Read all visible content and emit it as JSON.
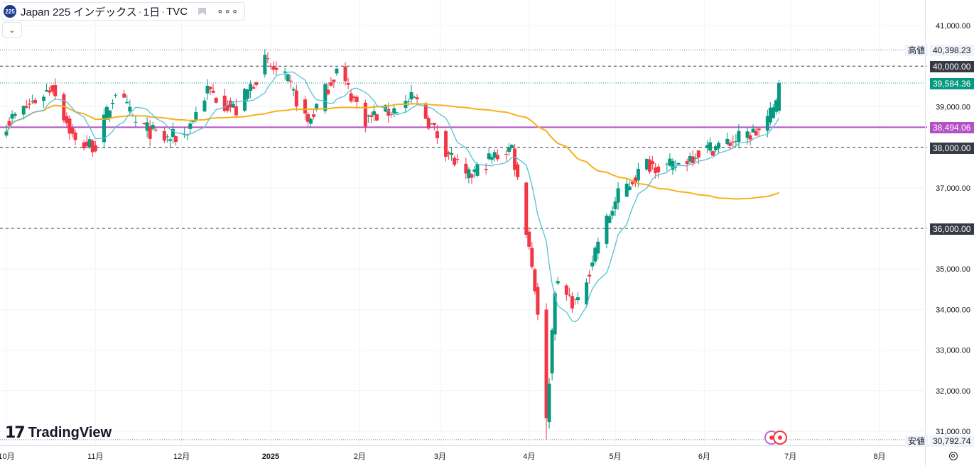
{
  "header": {
    "symbol_badge": "225",
    "symbol_name": "Japan 225 インデックス",
    "separator": "·",
    "interval": "1日",
    "source": "TVC",
    "flag_icon": "flag-icon",
    "more_icon": "more-icon",
    "more_glyph": "∘∘∘",
    "collapse_icon": "chevron-down-icon",
    "collapse_glyph": "⌄"
  },
  "logo": {
    "mark": "17",
    "text": "TradingView"
  },
  "price_labels": {
    "high_tag": "高値",
    "high_value": "40,398.23",
    "low_tag": "安値",
    "low_value": "30,792.74",
    "last_value": "39,584.36",
    "line_40000": "40,000.00",
    "line_38494": "38,494.06",
    "line_38000": "38,000.00",
    "line_36000": "36,000.00"
  },
  "colors": {
    "up": "#089981",
    "down": "#f23645",
    "ma_fast": "#56c1d6",
    "ma_slow": "#f5b21b",
    "hline_purple": "#b350c5",
    "dark_label": "#363a45",
    "grid": "#f0f3fa",
    "last_label": "#089981"
  },
  "chart_data": {
    "type": "candlestick",
    "title": "Japan 225 インデックス · 1日 · TVC",
    "ylim": [
      30700,
      41500
    ],
    "yticks": [
      "41,000.00",
      "40,000.00",
      "39,000.00",
      "38,000.00",
      "37,000.00",
      "36,000.00",
      "35,000.00",
      "34,000.00",
      "33,000.00",
      "32,000.00",
      "31,000.00"
    ],
    "ytick_values": [
      41000,
      40000,
      39000,
      38000,
      37000,
      36000,
      35000,
      34000,
      33000,
      32000,
      31000
    ],
    "xticks": [
      {
        "label": "10月",
        "date": "2024-10-01"
      },
      {
        "label": "11月",
        "date": "2024-11-01"
      },
      {
        "label": "12月",
        "date": "2024-12-01"
      },
      {
        "label": "2025",
        "date": "2025-01-01"
      },
      {
        "label": "2月",
        "date": "2025-02-01"
      },
      {
        "label": "3月",
        "date": "2025-03-01"
      },
      {
        "label": "4月",
        "date": "2025-04-01"
      },
      {
        "label": "5月",
        "date": "2025-05-01"
      },
      {
        "label": "6月",
        "date": "2025-06-01"
      },
      {
        "label": "7月",
        "date": "2025-07-01"
      },
      {
        "label": "8月",
        "date": "2025-08-01"
      }
    ],
    "horizontal_lines": [
      {
        "price": 40000,
        "style": "dashed",
        "color": "#363a45"
      },
      {
        "price": 38494.06,
        "style": "solid",
        "color": "#b350c5"
      },
      {
        "price": 38000,
        "style": "dashed",
        "color": "#363a45"
      },
      {
        "price": 36000,
        "style": "dashed",
        "color": "#363a45"
      }
    ],
    "high": 40398.23,
    "low": 30792.74,
    "last": 39584.36,
    "anchors": [
      {
        "date": "2024-10-01",
        "close": 38600
      },
      {
        "date": "2024-10-10",
        "close": 39100
      },
      {
        "date": "2024-10-17",
        "close": 39500
      },
      {
        "date": "2024-10-25",
        "close": 38100
      },
      {
        "date": "2024-11-01",
        "close": 38050
      },
      {
        "date": "2024-11-08",
        "close": 39400
      },
      {
        "date": "2024-11-15",
        "close": 38600
      },
      {
        "date": "2024-11-25",
        "close": 38200
      },
      {
        "date": "2024-12-02",
        "close": 38300
      },
      {
        "date": "2024-12-10",
        "close": 39400
      },
      {
        "date": "2024-12-20",
        "close": 38900
      },
      {
        "date": "2024-12-30",
        "close": 40100
      },
      {
        "date": "2025-01-07",
        "close": 39600
      },
      {
        "date": "2025-01-14",
        "close": 38600
      },
      {
        "date": "2025-01-24",
        "close": 39900
      },
      {
        "date": "2025-02-03",
        "close": 38700
      },
      {
        "date": "2025-02-12",
        "close": 38900
      },
      {
        "date": "2025-02-20",
        "close": 39200
      },
      {
        "date": "2025-02-28",
        "close": 38300
      },
      {
        "date": "2025-03-10",
        "close": 37200
      },
      {
        "date": "2025-03-18",
        "close": 37700
      },
      {
        "date": "2025-03-26",
        "close": 38000
      },
      {
        "date": "2025-04-01",
        "close": 35600
      },
      {
        "date": "2025-04-04",
        "close": 34000
      },
      {
        "date": "2025-04-07",
        "close": 31200
      },
      {
        "date": "2025-04-10",
        "close": 34600
      },
      {
        "date": "2025-04-18",
        "close": 34100
      },
      {
        "date": "2025-04-25",
        "close": 35700
      },
      {
        "date": "2025-05-02",
        "close": 36800
      },
      {
        "date": "2025-05-12",
        "close": 37600
      },
      {
        "date": "2025-05-21",
        "close": 37500
      },
      {
        "date": "2025-05-30",
        "close": 37900
      },
      {
        "date": "2025-06-09",
        "close": 38100
      },
      {
        "date": "2025-06-16",
        "close": 38300
      },
      {
        "date": "2025-06-20",
        "close": 38400
      },
      {
        "date": "2025-06-25",
        "close": 38900
      },
      {
        "date": "2025-06-27",
        "close": 39584.36
      }
    ]
  }
}
